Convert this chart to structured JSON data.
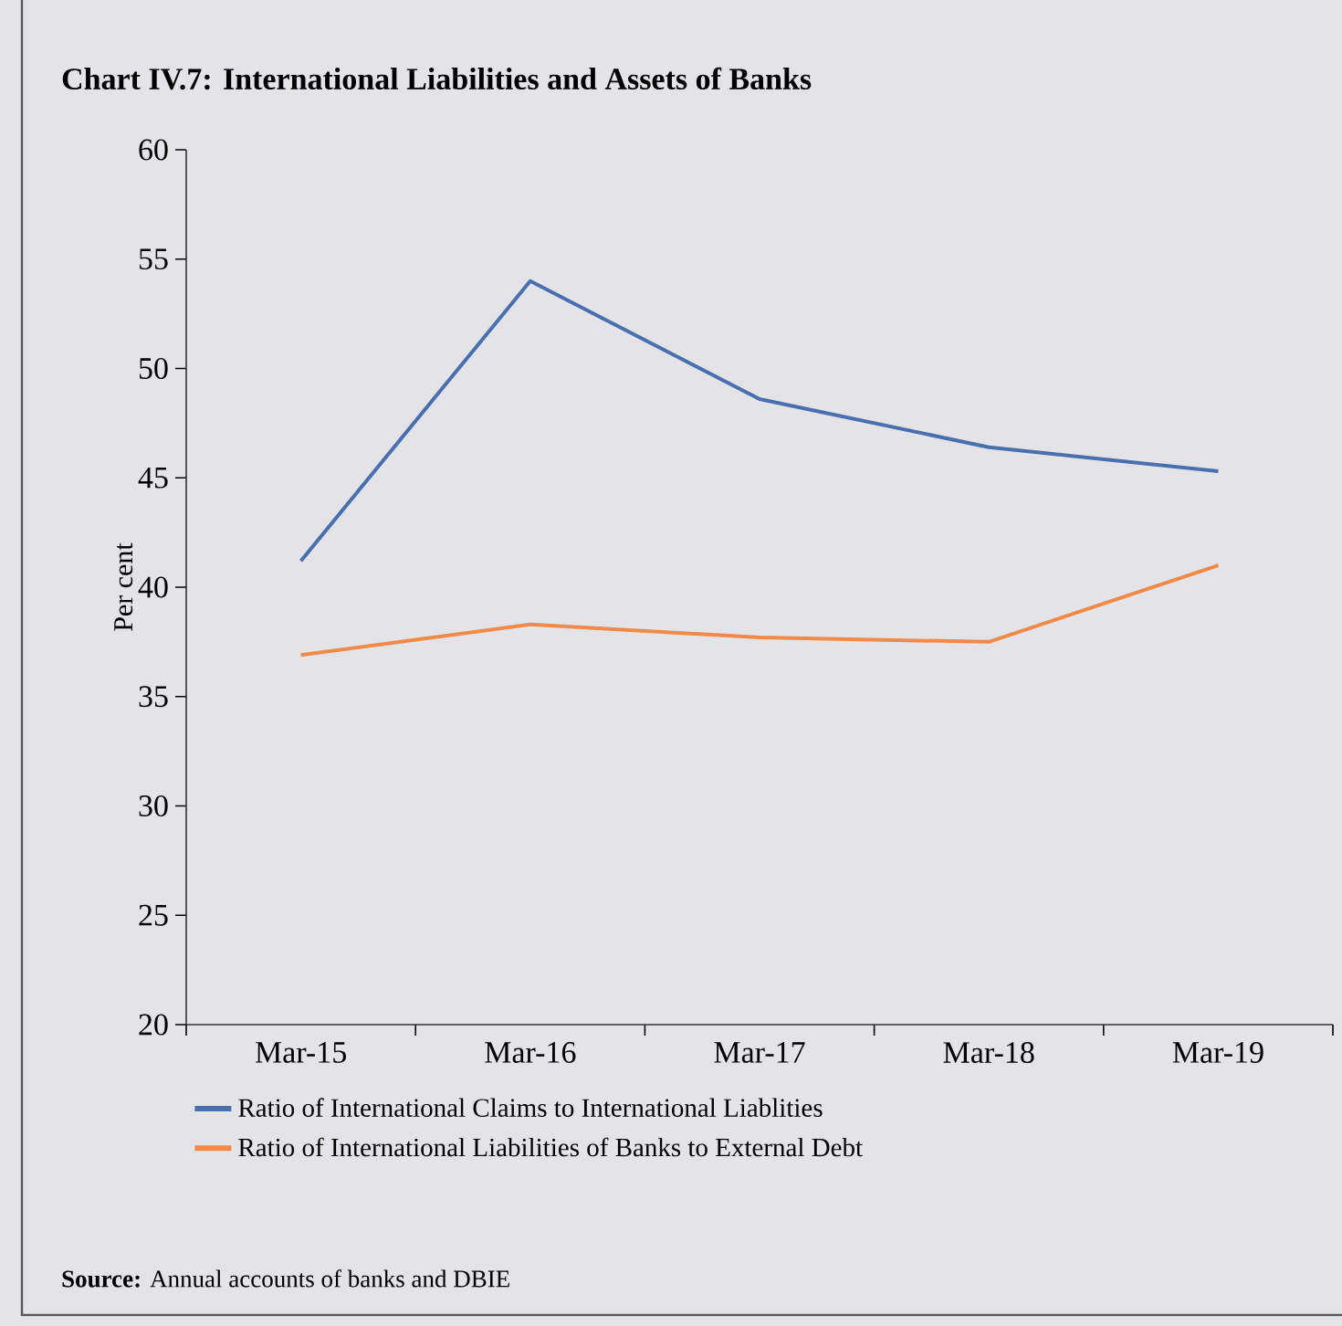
{
  "chart_data": {
    "type": "line",
    "title": "Chart IV.7: International Liabilities and Assets of Banks",
    "ylabel": "Per cent",
    "categories": [
      "Mar-15",
      "Mar-16",
      "Mar-17",
      "Mar-18",
      "Mar-19"
    ],
    "series": [
      {
        "name": "Ratio of International Claims to International Liablities",
        "color": "#4a6fae",
        "values": [
          41.2,
          54.0,
          48.6,
          46.4,
          45.3
        ]
      },
      {
        "name": "Ratio of International Liabilities of Banks to External Debt",
        "color": "#f08a4b",
        "values": [
          36.9,
          38.3,
          37.7,
          37.5,
          41.0
        ]
      }
    ],
    "ylim": [
      20,
      60
    ],
    "yticks": [
      20,
      25,
      30,
      35,
      40,
      45,
      50,
      55,
      60
    ],
    "legend": "bottom",
    "grid": false,
    "marker": "none",
    "line_style": "solid",
    "annotations": [
      "**Source:** Annual accounts of banks and DBIE"
    ]
  }
}
